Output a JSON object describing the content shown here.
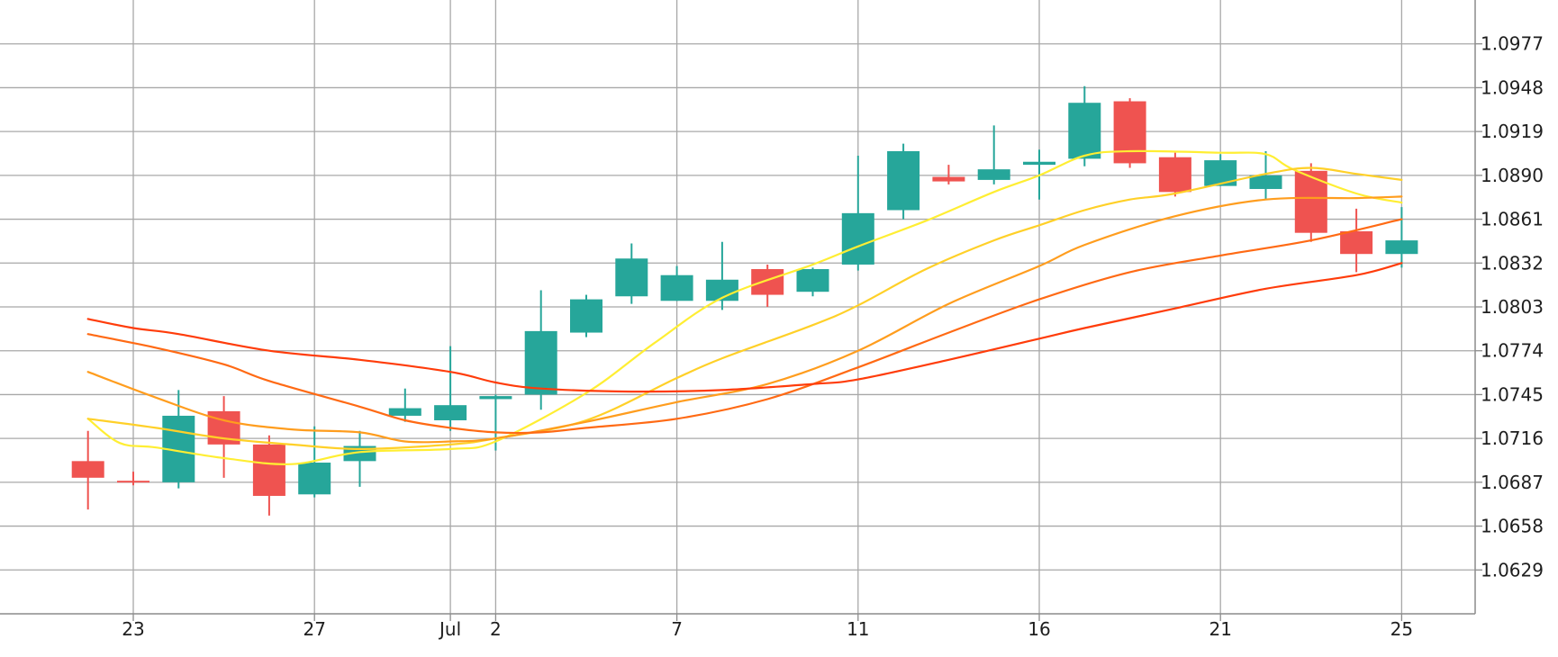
{
  "chart_data": {
    "type": "candlestick",
    "y_range": [
      1.06,
      1.1006
    ],
    "y_ticks": [
      "1.0977",
      "1.0948",
      "1.0919",
      "1.0890",
      "1.0861",
      "1.0832",
      "1.0803",
      "1.0774",
      "1.0745",
      "1.0716",
      "1.0687",
      "1.0658",
      "1.0629"
    ],
    "x_ticks": [
      {
        "label": "23",
        "day": 3
      },
      {
        "label": "27",
        "day": 7
      },
      {
        "label": "Jul",
        "day": 10
      },
      {
        "label": "2",
        "day": 11
      },
      {
        "label": "7",
        "day": 15
      },
      {
        "label": "11",
        "day": 19
      },
      {
        "label": "16",
        "day": 23
      },
      {
        "label": "21",
        "day": 27
      },
      {
        "label": "25",
        "day": 31
      }
    ],
    "candles": [
      {
        "day": 2,
        "open": 1.0701,
        "high": 1.0721,
        "low": 1.0669,
        "close": 1.069
      },
      {
        "day": 3,
        "open": 1.0688,
        "high": 1.0694,
        "low": 1.0685,
        "close": 1.0687
      },
      {
        "day": 4,
        "open": 1.0687,
        "high": 1.0748,
        "low": 1.0683,
        "close": 1.0731
      },
      {
        "day": 5,
        "open": 1.0734,
        "high": 1.0744,
        "low": 1.069,
        "close": 1.0712
      },
      {
        "day": 6,
        "open": 1.0712,
        "high": 1.0718,
        "low": 1.0665,
        "close": 1.0678
      },
      {
        "day": 7,
        "open": 1.0679,
        "high": 1.0724,
        "low": 1.0677,
        "close": 1.07
      },
      {
        "day": 8,
        "open": 1.0701,
        "high": 1.0721,
        "low": 1.0684,
        "close": 1.0711
      },
      {
        "day": 9,
        "open": 1.0731,
        "high": 1.0749,
        "low": 1.0727,
        "close": 1.0736
      },
      {
        "day": 10,
        "open": 1.0728,
        "high": 1.0777,
        "low": 1.0721,
        "close": 1.0738
      },
      {
        "day": 11,
        "open": 1.0742,
        "high": 1.0745,
        "low": 1.0708,
        "close": 1.0744
      },
      {
        "day": 12,
        "open": 1.0745,
        "high": 1.0814,
        "low": 1.0735,
        "close": 1.0787
      },
      {
        "day": 13,
        "open": 1.0786,
        "high": 1.0811,
        "low": 1.0783,
        "close": 1.0808
      },
      {
        "day": 14,
        "open": 1.081,
        "high": 1.0845,
        "low": 1.0805,
        "close": 1.0835
      },
      {
        "day": 15,
        "open": 1.0807,
        "high": 1.083,
        "low": 1.0807,
        "close": 1.0824
      },
      {
        "day": 16,
        "open": 1.0807,
        "high": 1.0846,
        "low": 1.0801,
        "close": 1.0821
      },
      {
        "day": 17,
        "open": 1.0828,
        "high": 1.0831,
        "low": 1.0803,
        "close": 1.0811
      },
      {
        "day": 18,
        "open": 1.0813,
        "high": 1.0829,
        "low": 1.081,
        "close": 1.0828
      },
      {
        "day": 19,
        "open": 1.0831,
        "high": 1.0903,
        "low": 1.0827,
        "close": 1.0865
      },
      {
        "day": 20,
        "open": 1.0867,
        "high": 1.0911,
        "low": 1.0861,
        "close": 1.0906
      },
      {
        "day": 21,
        "open": 1.0889,
        "high": 1.0897,
        "low": 1.0884,
        "close": 1.0886
      },
      {
        "day": 22,
        "open": 1.0887,
        "high": 1.0923,
        "low": 1.0884,
        "close": 1.0894
      },
      {
        "day": 23,
        "open": 1.0897,
        "high": 1.0907,
        "low": 1.0874,
        "close": 1.0899
      },
      {
        "day": 24,
        "open": 1.0901,
        "high": 1.0949,
        "low": 1.0896,
        "close": 1.0938
      },
      {
        "day": 25,
        "open": 1.0939,
        "high": 1.0941,
        "low": 1.0895,
        "close": 1.0898
      },
      {
        "day": 26,
        "open": 1.0902,
        "high": 1.0905,
        "low": 1.0876,
        "close": 1.0879
      },
      {
        "day": 27,
        "open": 1.0883,
        "high": 1.0904,
        "low": 1.0883,
        "close": 1.09
      },
      {
        "day": 28,
        "open": 1.0881,
        "high": 1.0906,
        "low": 1.0874,
        "close": 1.089
      },
      {
        "day": 29,
        "open": 1.0893,
        "high": 1.0898,
        "low": 1.0846,
        "close": 1.0852
      },
      {
        "day": 30,
        "open": 1.0853,
        "high": 1.0868,
        "low": 1.0826,
        "close": 1.0838
      },
      {
        "day": 31,
        "open": 1.0838,
        "high": 1.0869,
        "low": 1.0829,
        "close": 1.0847
      }
    ],
    "moving_averages": [
      {
        "color": "#ffee33",
        "points": [
          [
            2,
            1.0729
          ],
          [
            2.7,
            1.0713
          ],
          [
            3.5,
            1.071
          ],
          [
            5,
            1.0703
          ],
          [
            6.5,
            1.0699
          ],
          [
            8,
            1.0707
          ],
          [
            10,
            1.0709
          ],
          [
            11,
            1.0714
          ],
          [
            13,
            1.0746
          ],
          [
            14.5,
            1.0779
          ],
          [
            16,
            1.0809
          ],
          [
            18,
            1.0831
          ],
          [
            19,
            1.0843
          ],
          [
            20.5,
            1.086
          ],
          [
            22,
            1.0879
          ],
          [
            23,
            1.089
          ],
          [
            24,
            1.0903
          ],
          [
            25,
            1.0906
          ],
          [
            27,
            1.0905
          ],
          [
            28,
            1.0904
          ],
          [
            28.6,
            1.0894
          ],
          [
            30,
            1.0878
          ],
          [
            31,
            1.0872
          ]
        ]
      },
      {
        "color": "#ffd028",
        "points": [
          [
            2,
            1.0729
          ],
          [
            3.5,
            1.0723
          ],
          [
            5,
            1.0716
          ],
          [
            6.5,
            1.0712
          ],
          [
            8,
            1.0709
          ],
          [
            10,
            1.0712
          ],
          [
            11,
            1.0716
          ],
          [
            13,
            1.0728
          ],
          [
            15,
            1.0756
          ],
          [
            16,
            1.0769
          ],
          [
            18,
            1.0791
          ],
          [
            19,
            1.0804
          ],
          [
            20.5,
            1.0828
          ],
          [
            22,
            1.0847
          ],
          [
            23,
            1.0857
          ],
          [
            24,
            1.0867
          ],
          [
            25,
            1.0874
          ],
          [
            26,
            1.0878
          ],
          [
            28,
            1.0891
          ],
          [
            29,
            1.0895
          ],
          [
            30,
            1.0891
          ],
          [
            31,
            1.0887
          ]
        ]
      },
      {
        "color": "#ff9d1e",
        "points": [
          [
            2,
            1.076
          ],
          [
            3.5,
            1.0743
          ],
          [
            5,
            1.0728
          ],
          [
            6.5,
            1.0722
          ],
          [
            8,
            1.072
          ],
          [
            9,
            1.0714
          ],
          [
            10,
            1.0714
          ],
          [
            11,
            1.0716
          ],
          [
            13,
            1.0727
          ],
          [
            15,
            1.074
          ],
          [
            17,
            1.0752
          ],
          [
            19,
            1.0774
          ],
          [
            21,
            1.0805
          ],
          [
            23,
            1.083
          ],
          [
            24,
            1.0844
          ],
          [
            26,
            1.0863
          ],
          [
            28,
            1.0874
          ],
          [
            30,
            1.0875
          ],
          [
            31,
            1.0876
          ]
        ]
      },
      {
        "color": "#ff6a14",
        "points": [
          [
            2,
            1.0785
          ],
          [
            3.5,
            1.0776
          ],
          [
            5,
            1.0765
          ],
          [
            6,
            1.0754
          ],
          [
            8,
            1.0737
          ],
          [
            9,
            1.0728
          ],
          [
            10,
            1.0723
          ],
          [
            11,
            1.072
          ],
          [
            12,
            1.072
          ],
          [
            13,
            1.0723
          ],
          [
            15,
            1.0729
          ],
          [
            17,
            1.0742
          ],
          [
            19,
            1.0763
          ],
          [
            21,
            1.0786
          ],
          [
            23,
            1.0808
          ],
          [
            25,
            1.0826
          ],
          [
            27,
            1.0837
          ],
          [
            29,
            1.0847
          ],
          [
            31,
            1.0861
          ]
        ]
      },
      {
        "color": "#ff3c0a",
        "points": [
          [
            2,
            1.0795
          ],
          [
            3,
            1.0789
          ],
          [
            4,
            1.0785
          ],
          [
            6,
            1.0774
          ],
          [
            8,
            1.0768
          ],
          [
            10,
            1.076
          ],
          [
            11,
            1.0753
          ],
          [
            12,
            1.0749
          ],
          [
            14,
            1.0747
          ],
          [
            16,
            1.0748
          ],
          [
            18,
            1.0752
          ],
          [
            19,
            1.0755
          ],
          [
            21,
            1.0768
          ],
          [
            23,
            1.0782
          ],
          [
            24,
            1.0789
          ],
          [
            26,
            1.0802
          ],
          [
            28,
            1.0815
          ],
          [
            30,
            1.0824
          ],
          [
            31,
            1.0832
          ]
        ]
      }
    ]
  }
}
